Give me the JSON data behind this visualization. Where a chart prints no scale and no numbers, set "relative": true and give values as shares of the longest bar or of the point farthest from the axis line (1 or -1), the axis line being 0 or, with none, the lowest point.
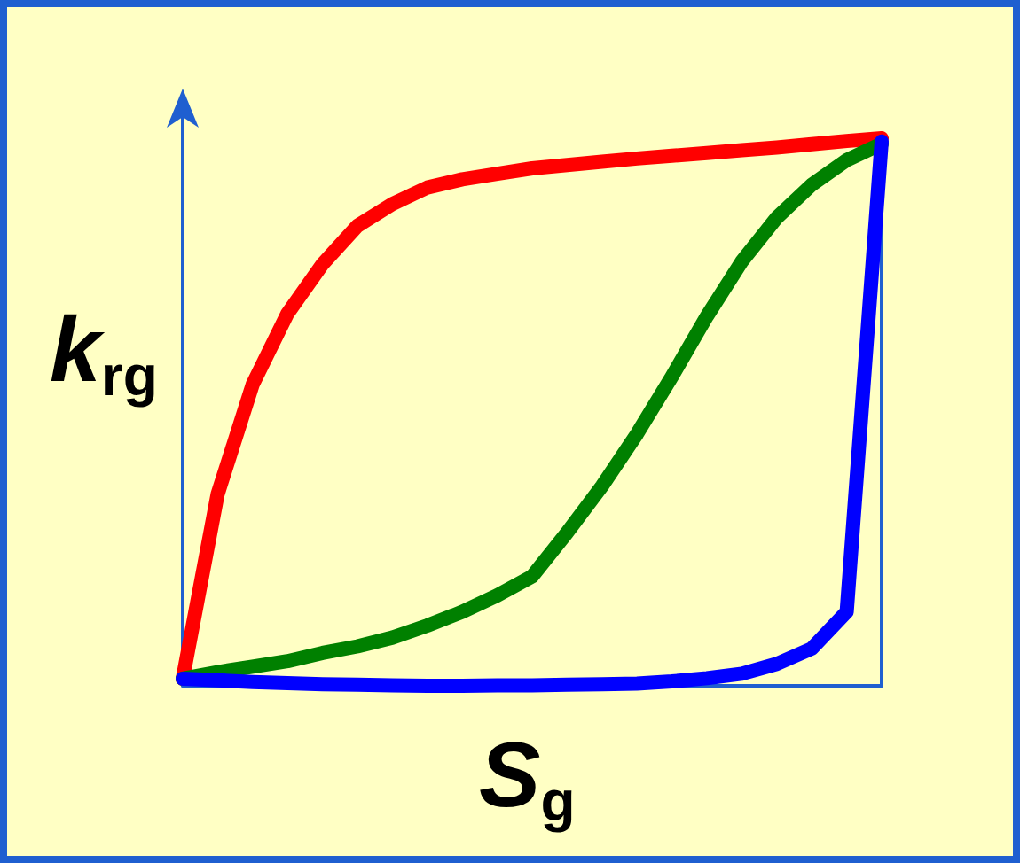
{
  "chart_data": {
    "type": "line",
    "relative": true,
    "xlabel": "S$_{g}$",
    "ylabel": "k$_{rg}$",
    "grid": false,
    "marker": "none",
    "line_style": "solid",
    "categories": [
      null,
      null,
      null,
      null,
      null,
      null,
      null,
      null,
      null,
      null,
      null,
      null,
      null,
      null,
      null,
      null,
      null,
      null,
      null,
      null,
      null
    ],
    "series": [
      {
        "color": "#ff0000",
        "values": [
          0.013,
          0.35,
          0.55,
          0.68,
          0.77,
          0.84,
          0.88,
          0.91,
          0.925,
          0.935,
          0.945,
          0.951,
          0.957,
          0.963,
          0.968,
          0.973,
          0.978,
          0.983,
          0.989,
          0.995,
          1
        ]
      },
      {
        "color": "#008000",
        "values": [
          0.013,
          0.025,
          0.035,
          0.045,
          0.06,
          0.072,
          0.088,
          0.11,
          0.135,
          0.165,
          0.2,
          0.28,
          0.365,
          0.46,
          0.565,
          0.675,
          0.775,
          0.855,
          0.915,
          0.96,
          0.99
        ]
      },
      {
        "color": "#0000ff",
        "values": [
          0.013,
          0.01,
          0.007,
          0.005,
          0.003,
          0.002,
          0.001,
          0,
          0,
          0.001,
          0.001,
          0.002,
          0.003,
          0.004,
          0.008,
          0.014,
          0.022,
          0.04,
          0.068,
          0.135,
          0.994
        ]
      }
    ]
  }
}
